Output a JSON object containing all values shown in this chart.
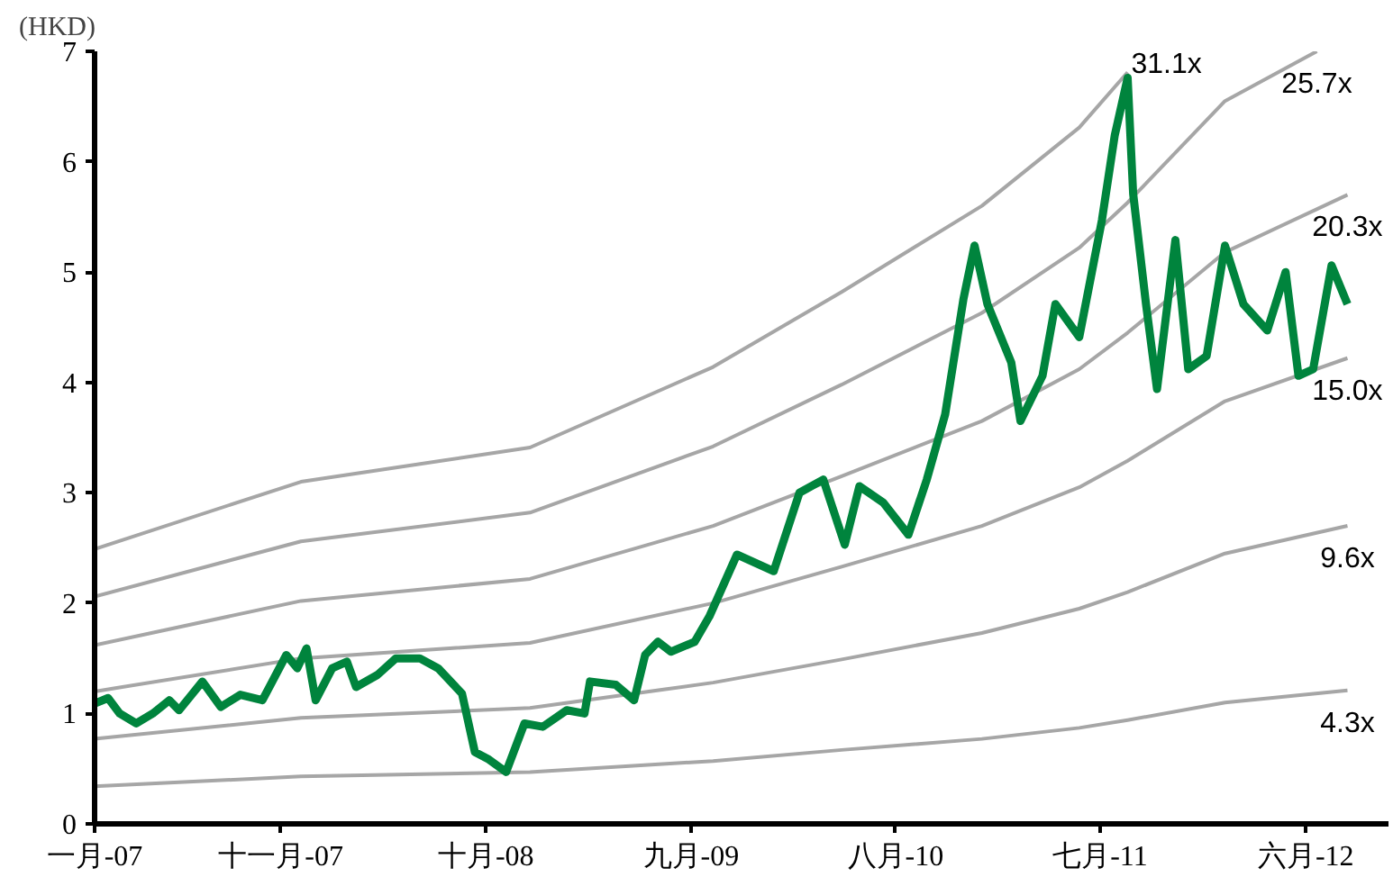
{
  "chart_data": {
    "type": "line",
    "ylabel": "(HKD)",
    "xlim": [
      "2007-01-01",
      "2012-10-14"
    ],
    "ylim": [
      0,
      7
    ],
    "yticks": [
      0,
      1,
      2,
      3,
      4,
      5,
      6,
      7
    ],
    "xticks": [
      {
        "value": "2007-01-01",
        "label": "一月-07"
      },
      {
        "value": "2007-11-01",
        "label": "十一月-07"
      },
      {
        "value": "2008-10-01",
        "label": "十月-08"
      },
      {
        "value": "2009-09-01",
        "label": "九月-09"
      },
      {
        "value": "2010-08-01",
        "label": "八月-10"
      },
      {
        "value": "2011-07-01",
        "label": "七月-11"
      },
      {
        "value": "2012-06-01",
        "label": "六月-12"
      }
    ],
    "grid": false,
    "marker": "none",
    "line_style": "solid",
    "series": [
      {
        "name": "31.1x",
        "color": "#a6a6a6",
        "x": [
          "2007-01-01",
          "2007-12-04",
          "2008-12-12",
          "2009-10-07",
          "2010-05-05",
          "2010-12-20",
          "2011-05-28",
          "2011-08-15"
        ],
        "values": [
          2.49,
          3.1,
          3.41,
          4.14,
          4.82,
          5.6,
          6.31,
          6.81
        ]
      },
      {
        "name": "25.7x",
        "color": "#a6a6a6",
        "x": [
          "2007-01-01",
          "2007-12-04",
          "2008-12-12",
          "2009-10-07",
          "2010-05-05",
          "2010-12-20",
          "2011-05-28",
          "2011-08-15",
          "2012-01-21",
          "2012-06-19"
        ],
        "values": [
          2.06,
          2.56,
          2.82,
          3.42,
          3.98,
          4.63,
          5.22,
          5.63,
          6.55,
          7.0
        ]
      },
      {
        "name": "20.3x",
        "color": "#a6a6a6",
        "x": [
          "2007-01-01",
          "2007-12-04",
          "2008-12-12",
          "2009-10-07",
          "2010-05-05",
          "2010-12-20",
          "2011-05-28",
          "2011-08-15",
          "2012-01-21",
          "2012-08-08"
        ],
        "values": [
          1.62,
          2.02,
          2.22,
          2.7,
          3.15,
          3.65,
          4.12,
          4.45,
          5.18,
          5.7
        ]
      },
      {
        "color": "#a6a6a6",
        "x": [
          "2007-01-01",
          "2007-12-04",
          "2008-12-12",
          "2009-10-07",
          "2010-05-05",
          "2010-12-20",
          "2011-05-28",
          "2011-08-15",
          "2012-01-21",
          "2012-08-08"
        ],
        "name": "15.0x",
        "values": [
          1.2,
          1.5,
          1.64,
          2.0,
          2.33,
          2.7,
          3.05,
          3.29,
          3.83,
          4.22
        ]
      },
      {
        "color": "#a6a6a6",
        "x": [
          "2007-01-01",
          "2007-12-04",
          "2008-12-12",
          "2009-10-07",
          "2010-05-05",
          "2010-12-20",
          "2011-05-28",
          "2011-08-15",
          "2012-01-21",
          "2012-08-08"
        ],
        "name": "9.6x",
        "values": [
          0.77,
          0.96,
          1.05,
          1.28,
          1.49,
          1.73,
          1.95,
          2.1,
          2.45,
          2.7
        ]
      },
      {
        "color": "#a6a6a6",
        "x": [
          "2007-01-01",
          "2007-12-04",
          "2008-12-12",
          "2009-10-07",
          "2010-05-05",
          "2010-12-20",
          "2011-05-28",
          "2011-08-15",
          "2012-01-21",
          "2012-08-08"
        ],
        "name": "4.3x",
        "values": [
          0.34,
          0.43,
          0.47,
          0.57,
          0.67,
          0.77,
          0.87,
          0.94,
          1.1,
          1.21
        ]
      },
      {
        "color": "#00843d",
        "x": [
          "2007-01-01",
          "2007-01-23",
          "2007-02-11",
          "2007-03-10",
          "2007-04-06",
          "2007-05-03",
          "2007-05-19",
          "2007-06-26",
          "2007-07-26",
          "2007-08-27",
          "2007-10-02",
          "2007-11-10",
          "2007-11-28",
          "2007-12-13",
          "2007-12-28",
          "2008-01-24",
          "2008-02-17",
          "2008-03-03",
          "2008-04-07",
          "2008-05-07",
          "2008-06-15",
          "2008-07-15",
          "2008-08-23",
          "2008-09-13",
          "2008-10-04",
          "2008-11-03",
          "2008-12-03",
          "2009-01-02",
          "2009-02-10",
          "2009-03-11",
          "2009-03-20",
          "2009-05-01",
          "2009-05-31",
          "2009-06-18",
          "2009-07-09",
          "2009-07-30",
          "2009-09-07",
          "2009-10-01",
          "2009-11-15",
          "2010-01-14",
          "2010-02-25",
          "2010-04-05",
          "2010-05-10",
          "2010-06-03",
          "2010-07-12",
          "2010-08-22",
          "2010-09-21",
          "2010-10-21",
          "2010-11-20",
          "2010-12-08",
          "2010-12-29",
          "2011-02-06",
          "2011-02-21",
          "2011-03-29",
          "2011-04-19",
          "2011-05-28",
          "2011-07-04",
          "2011-07-25",
          "2011-08-15",
          "2011-08-24",
          "2011-09-14",
          "2011-10-02",
          "2011-11-01",
          "2011-11-22",
          "2011-12-22",
          "2012-01-21",
          "2012-02-20",
          "2012-03-30",
          "2012-04-29",
          "2012-05-20",
          "2012-06-13",
          "2012-07-13",
          "2012-08-08"
        ],
        "values": [
          1.09,
          1.14,
          1.0,
          0.91,
          1.0,
          1.12,
          1.03,
          1.29,
          1.06,
          1.17,
          1.12,
          1.53,
          1.41,
          1.59,
          1.12,
          1.41,
          1.47,
          1.24,
          1.35,
          1.5,
          1.5,
          1.41,
          1.18,
          0.65,
          0.59,
          0.47,
          0.91,
          0.88,
          1.03,
          1.0,
          1.29,
          1.26,
          1.12,
          1.53,
          1.65,
          1.56,
          1.65,
          1.88,
          2.44,
          2.29,
          3.0,
          3.12,
          2.53,
          3.06,
          2.91,
          2.62,
          3.12,
          3.71,
          4.76,
          5.24,
          4.71,
          4.18,
          3.65,
          4.06,
          4.71,
          4.41,
          5.47,
          6.24,
          6.76,
          5.71,
          4.71,
          3.94,
          5.29,
          4.12,
          4.24,
          5.24,
          4.71,
          4.47,
          5.0,
          4.06,
          4.12,
          5.06,
          4.71
        ]
      }
    ]
  }
}
